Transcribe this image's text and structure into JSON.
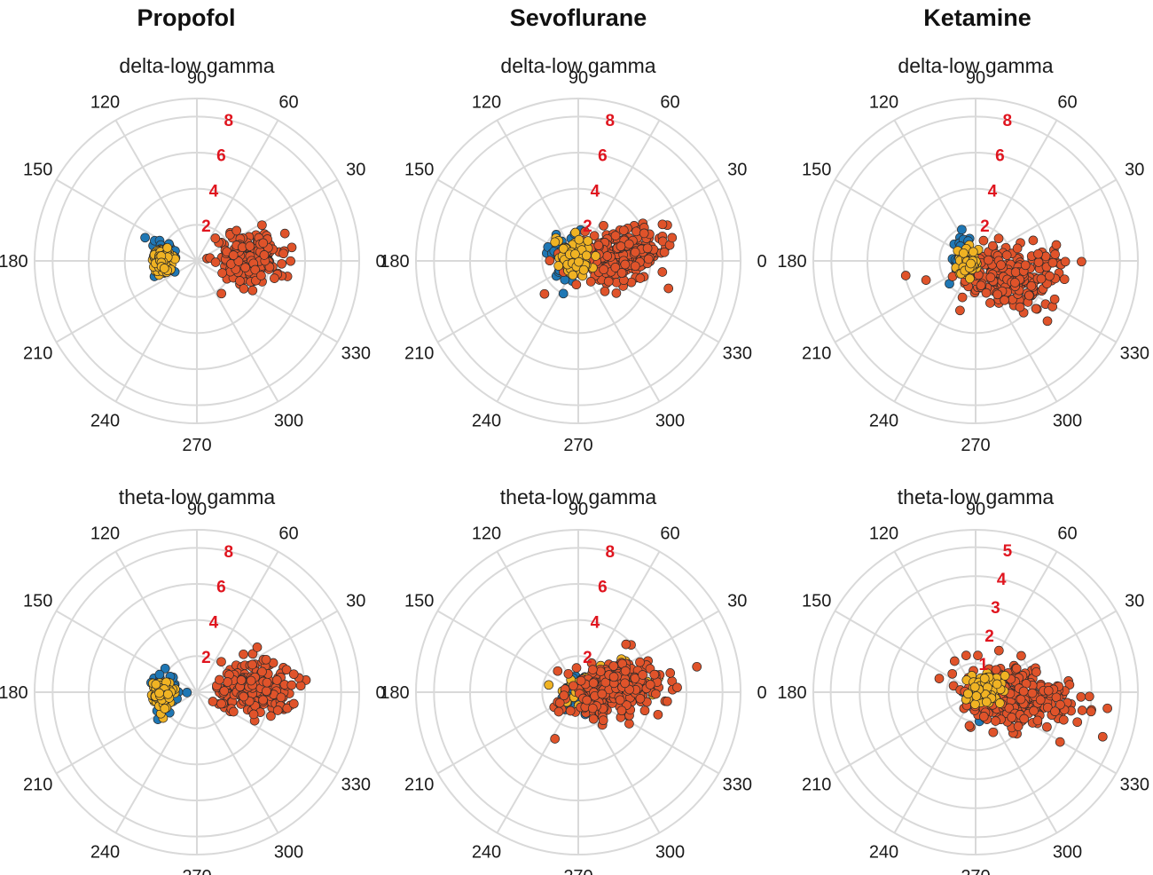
{
  "figure": {
    "columns": [
      "Propofol",
      "Sevoflurane",
      "Ketamine"
    ],
    "rows": [
      "delta-low gamma",
      "theta-low gamma"
    ],
    "angle_ticks_deg": [
      "0",
      "30",
      "60",
      "90",
      "120",
      "150",
      "180",
      "210",
      "240",
      "270",
      "300",
      "330"
    ],
    "radial_label_color": "#e0151f",
    "grid_color": "#d9d9d9",
    "series_colors": {
      "blue": "#1f77b4",
      "yellow": "#f0b323",
      "red": "#e0532a"
    }
  },
  "chart_data": [
    {
      "id": "propofol-delta",
      "type": "scatter",
      "coordinates": "polar",
      "title": "Propofol",
      "subtitle": "delta-low gamma",
      "r_ticks": [
        "2",
        "4",
        "6",
        "8"
      ],
      "r_max": 9,
      "series": [
        {
          "name": "group-blue",
          "color": "#1f77b4",
          "n": 55,
          "center_x": -1.9,
          "center_y": 0.1,
          "spread_x": 0.35,
          "spread_y": 0.45
        },
        {
          "name": "group-red",
          "color": "#e0532a",
          "n": 190,
          "center_x": 2.9,
          "center_y": 0.1,
          "spread_x": 0.95,
          "spread_y": 0.75
        },
        {
          "name": "group-yellow",
          "color": "#f0b323",
          "n": 150,
          "center_x": -1.9,
          "center_y": 0.0,
          "spread_x": 0.28,
          "spread_y": 0.3
        }
      ]
    },
    {
      "id": "sevoflurane-delta",
      "type": "scatter",
      "coordinates": "polar",
      "title": "Sevoflurane",
      "subtitle": "delta-low gamma",
      "r_ticks": [
        "2",
        "4",
        "6",
        "8"
      ],
      "r_max": 9,
      "series": [
        {
          "name": "group-blue",
          "color": "#1f77b4",
          "n": 65,
          "center_x": -0.6,
          "center_y": 0.2,
          "spread_x": 0.5,
          "spread_y": 0.75
        },
        {
          "name": "group-red",
          "color": "#e0532a",
          "n": 260,
          "center_x": 2.0,
          "center_y": 0.2,
          "spread_x": 1.35,
          "spread_y": 0.75,
          "tilt": 0.25
        },
        {
          "name": "group-yellow",
          "color": "#f0b323",
          "n": 70,
          "center_x": -0.2,
          "center_y": 0.1,
          "spread_x": 0.55,
          "spread_y": 0.55
        }
      ]
    },
    {
      "id": "ketamine-delta",
      "type": "scatter",
      "coordinates": "polar",
      "title": "Ketamine",
      "subtitle": "delta-low gamma",
      "r_ticks": [
        "2",
        "4",
        "6",
        "8"
      ],
      "r_max": 9,
      "series": [
        {
          "name": "group-blue",
          "color": "#1f77b4",
          "n": 45,
          "center_x": -0.8,
          "center_y": 0.4,
          "spread_x": 0.3,
          "spread_y": 0.6
        },
        {
          "name": "group-red",
          "color": "#e0532a",
          "n": 230,
          "center_x": 2.0,
          "center_y": -0.9,
          "spread_x": 1.35,
          "spread_y": 0.9,
          "tilt": 0.12
        },
        {
          "name": "group-yellow",
          "color": "#f0b323",
          "n": 50,
          "center_x": -0.4,
          "center_y": 0.0,
          "spread_x": 0.35,
          "spread_y": 0.45
        }
      ]
    },
    {
      "id": "propofol-theta",
      "type": "scatter",
      "coordinates": "polar",
      "title": "Propofol",
      "subtitle": "theta-low gamma",
      "r_ticks": [
        "2",
        "4",
        "6",
        "8"
      ],
      "r_max": 9,
      "series": [
        {
          "name": "group-blue",
          "color": "#1f77b4",
          "n": 55,
          "center_x": -1.8,
          "center_y": 0.0,
          "spread_x": 0.4,
          "spread_y": 0.6
        },
        {
          "name": "group-red",
          "color": "#e0532a",
          "n": 200,
          "center_x": 3.3,
          "center_y": 0.2,
          "spread_x": 1.05,
          "spread_y": 0.8
        },
        {
          "name": "group-yellow",
          "color": "#f0b323",
          "n": 150,
          "center_x": -1.9,
          "center_y": -0.1,
          "spread_x": 0.28,
          "spread_y": 0.35
        }
      ]
    },
    {
      "id": "sevoflurane-theta",
      "type": "scatter",
      "coordinates": "polar",
      "title": "Sevoflurane",
      "subtitle": "theta-low gamma",
      "r_ticks": [
        "2",
        "4",
        "6",
        "8"
      ],
      "r_max": 9,
      "series": [
        {
          "name": "group-blue",
          "color": "#1f77b4",
          "n": 45,
          "center_x": 0.2,
          "center_y": 0.0,
          "spread_x": 0.55,
          "spread_y": 0.5
        },
        {
          "name": "group-yellow",
          "color": "#f0b323",
          "n": 70,
          "center_x": 1.4,
          "center_y": 0.4,
          "spread_x": 1.3,
          "spread_y": 0.45,
          "tilt": 0.25
        },
        {
          "name": "group-red",
          "color": "#e0532a",
          "n": 270,
          "center_x": 1.9,
          "center_y": 0.1,
          "spread_x": 1.4,
          "spread_y": 0.75,
          "tilt": 0.2
        }
      ]
    },
    {
      "id": "ketamine-theta",
      "type": "scatter",
      "coordinates": "polar",
      "title": "Ketamine",
      "subtitle": "theta-low gamma",
      "r_ticks": [
        "1",
        "2",
        "3",
        "4",
        "5"
      ],
      "r_max": 5.6,
      "series": [
        {
          "name": "group-blue",
          "color": "#1f77b4",
          "n": 50,
          "center_x": 0.1,
          "center_y": -0.15,
          "spread_x": 0.25,
          "spread_y": 0.4
        },
        {
          "name": "group-red",
          "color": "#e0532a",
          "n": 280,
          "center_x": 1.5,
          "center_y": -0.1,
          "spread_x": 1.0,
          "spread_y": 0.55,
          "tilt": -0.12
        },
        {
          "name": "group-yellow",
          "color": "#f0b323",
          "n": 65,
          "center_x": 0.3,
          "center_y": 0.1,
          "spread_x": 0.3,
          "spread_y": 0.3
        }
      ]
    }
  ]
}
